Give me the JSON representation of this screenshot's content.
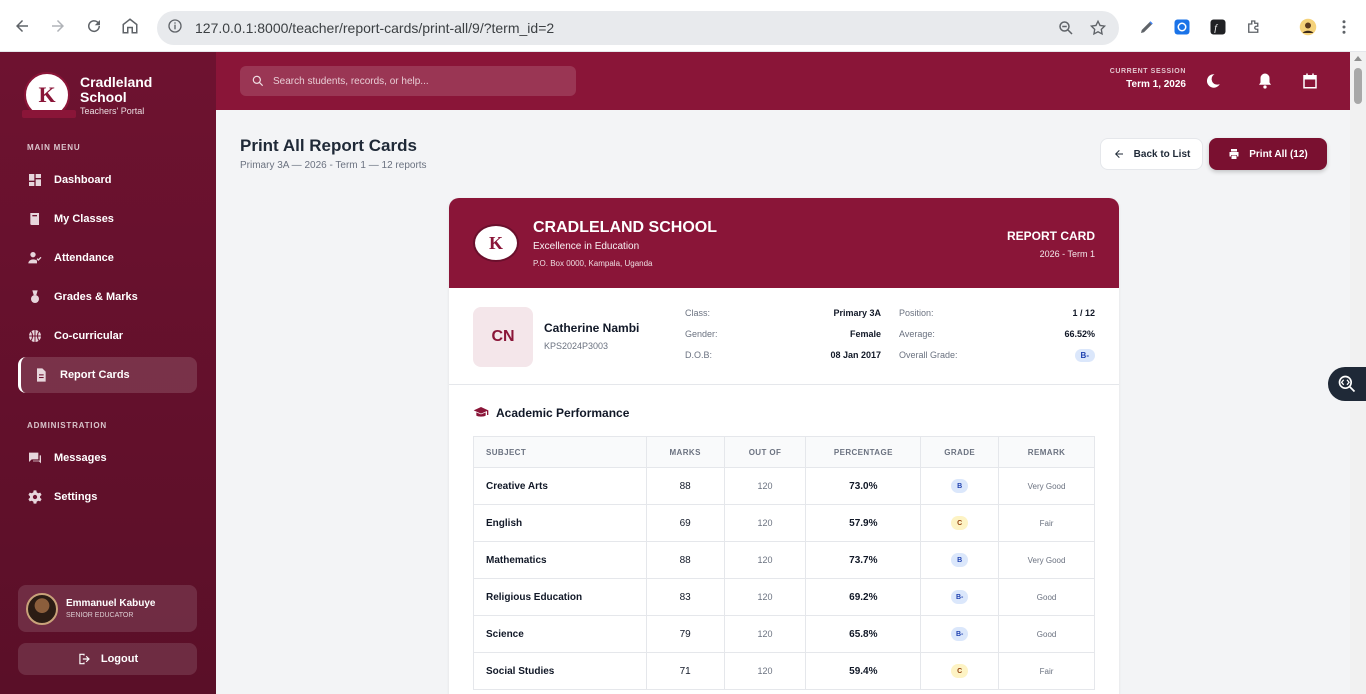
{
  "browser": {
    "url": "127.0.0.1:8000/teacher/report-cards/print-all/9/?term_id=2"
  },
  "sidebar": {
    "brand_name": "Cradleland School",
    "brand_sub": "Teachers' Portal",
    "main_menu_label": "MAIN MENU",
    "items": [
      {
        "label": "Dashboard",
        "icon": "dashboard-icon"
      },
      {
        "label": "My Classes",
        "icon": "book-icon"
      },
      {
        "label": "Attendance",
        "icon": "user-check-icon"
      },
      {
        "label": "Grades & Marks",
        "icon": "medal-icon"
      },
      {
        "label": "Co-curricular",
        "icon": "basketball-icon"
      },
      {
        "label": "Report Cards",
        "icon": "document-icon",
        "active": true
      }
    ],
    "admin_label": "ADMINISTRATION",
    "admin_items": [
      {
        "label": "Messages",
        "icon": "chat-icon"
      },
      {
        "label": "Settings",
        "icon": "gear-icon"
      }
    ],
    "user": {
      "name": "Emmanuel Kabuye",
      "role": "SENIOR EDUCATOR"
    },
    "logout_label": "Logout"
  },
  "header": {
    "search_placeholder": "Search students, records, or help...",
    "session_label": "CURRENT SESSION",
    "session_value": "Term 1, 2026"
  },
  "page": {
    "title": "Print All Report Cards",
    "subtitle": "Primary 3A — 2026 - Term 1 — 12 reports",
    "back_label": "Back to List",
    "print_label": "Print All (12)"
  },
  "report": {
    "school_name": "CRADLELAND SCHOOL",
    "motto": "Excellence in Education",
    "address": "P.O. Box 0000, Kampala, Uganda",
    "title": "REPORT CARD",
    "term": "2026 - Term 1",
    "student": {
      "initials": "CN",
      "name": "Catherine Nambi",
      "id": "KPS2024P3003",
      "class_label": "Class:",
      "class_value": "Primary 3A",
      "gender_label": "Gender:",
      "gender_value": "Female",
      "dob_label": "D.O.B:",
      "dob_value": "08 Jan 2017",
      "position_label": "Position:",
      "position_value": "1 / 12",
      "average_label": "Average:",
      "average_value": "66.52%",
      "grade_label": "Overall Grade:",
      "grade_value": "B-"
    },
    "section_title": "Academic Performance",
    "columns": [
      "SUBJECT",
      "MARKS",
      "OUT OF",
      "PERCENTAGE",
      "GRADE",
      "REMARK"
    ],
    "rows": [
      {
        "subject": "Creative Arts",
        "marks": "88",
        "out_of": "120",
        "pct": "73.0%",
        "grade": "B",
        "remark": "Very Good"
      },
      {
        "subject": "English",
        "marks": "69",
        "out_of": "120",
        "pct": "57.9%",
        "grade": "C",
        "remark": "Fair"
      },
      {
        "subject": "Mathematics",
        "marks": "88",
        "out_of": "120",
        "pct": "73.7%",
        "grade": "B",
        "remark": "Very Good"
      },
      {
        "subject": "Religious Education",
        "marks": "83",
        "out_of": "120",
        "pct": "69.2%",
        "grade": "B-",
        "remark": "Good"
      },
      {
        "subject": "Science",
        "marks": "79",
        "out_of": "120",
        "pct": "65.8%",
        "grade": "B-",
        "remark": "Good"
      },
      {
        "subject": "Social Studies",
        "marks": "71",
        "out_of": "120",
        "pct": "59.4%",
        "grade": "C",
        "remark": "Fair"
      }
    ]
  },
  "colors": {
    "brand": "#8a1538",
    "sidebar": "#6e1230",
    "grade_b_bg": "#dbe7fb",
    "grade_b_fg": "#1e40af",
    "grade_c_bg": "#fdf3c4",
    "grade_c_fg": "#92400e"
  }
}
